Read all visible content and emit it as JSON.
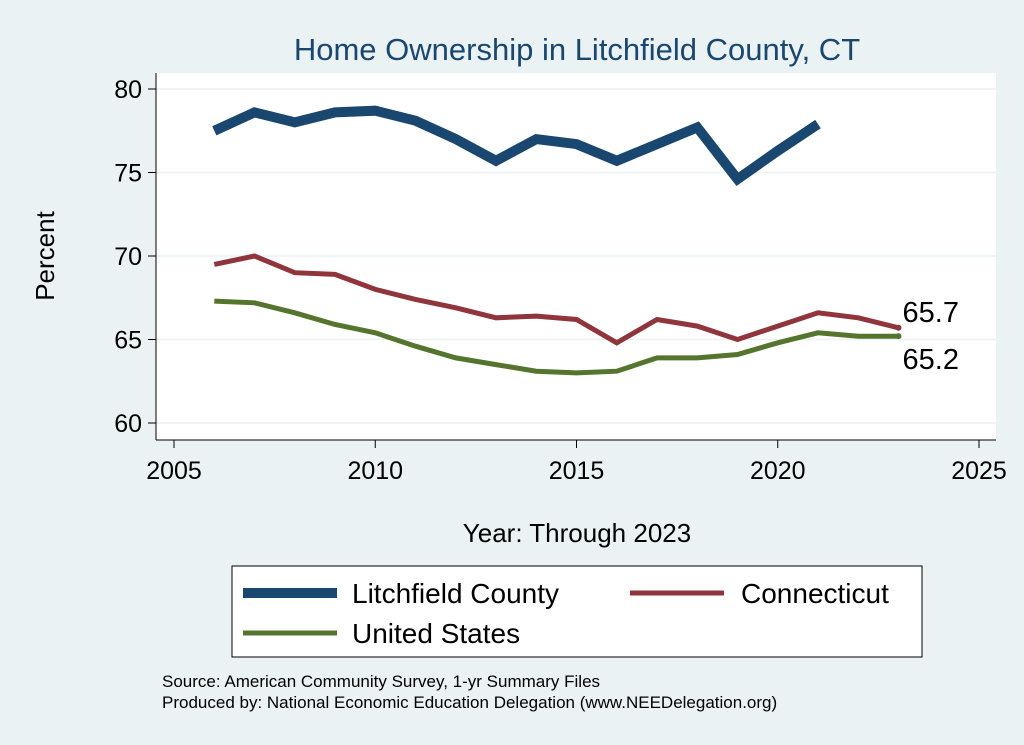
{
  "chart_data": {
    "type": "line",
    "title": "Home Ownership in Litchfield County, CT",
    "xlabel": "Year: Through 2023",
    "ylabel": "Percent",
    "xlim": [
      2005,
      2025
    ],
    "ylim": [
      60,
      80
    ],
    "xticks": [
      2005,
      2010,
      2015,
      2020,
      2025
    ],
    "yticks": [
      60,
      65,
      70,
      75,
      80
    ],
    "grid": true,
    "series": [
      {
        "name": "Litchfield County",
        "color": "#1a476f",
        "x": [
          2006,
          2007,
          2008,
          2009,
          2010,
          2011,
          2012,
          2013,
          2014,
          2015,
          2016,
          2017,
          2018,
          2019,
          2020,
          2021
        ],
        "y": [
          77.5,
          78.6,
          78.0,
          78.6,
          78.7,
          78.1,
          77.0,
          75.7,
          77.0,
          76.7,
          75.7,
          76.7,
          77.7,
          74.6,
          76.3,
          77.9
        ]
      },
      {
        "name": "Connecticut",
        "color": "#90353b",
        "x": [
          2006,
          2007,
          2008,
          2009,
          2010,
          2011,
          2012,
          2013,
          2014,
          2015,
          2016,
          2017,
          2018,
          2019,
          2020,
          2021,
          2022,
          2023
        ],
        "y": [
          69.5,
          70.0,
          69.0,
          68.9,
          68.0,
          67.4,
          66.9,
          66.3,
          66.4,
          66.2,
          64.8,
          66.2,
          65.8,
          65.0,
          65.8,
          66.6,
          66.3,
          65.7
        ]
      },
      {
        "name": "United States",
        "color": "#55752f",
        "x": [
          2006,
          2007,
          2008,
          2009,
          2010,
          2011,
          2012,
          2013,
          2014,
          2015,
          2016,
          2017,
          2018,
          2019,
          2020,
          2021,
          2022,
          2023
        ],
        "y": [
          67.3,
          67.2,
          66.6,
          65.9,
          65.4,
          64.6,
          63.9,
          63.5,
          63.1,
          63.0,
          63.1,
          63.9,
          63.9,
          64.1,
          64.8,
          65.4,
          65.2,
          65.2
        ]
      }
    ],
    "end_labels": [
      {
        "series": "Connecticut",
        "x": 2023,
        "y": 65.7,
        "text": "65.7"
      },
      {
        "series": "United States",
        "x": 2023,
        "y": 65.2,
        "text": "65.2"
      }
    ],
    "legend": {
      "placement": "bottom",
      "entries": [
        "Litchfield County",
        "Connecticut",
        "United States"
      ]
    },
    "notes": [
      "Source: American Community Survey, 1-yr Summary Files",
      "Produced by: National Economic Education Delegation (www.NEEDelegation.org)"
    ]
  }
}
